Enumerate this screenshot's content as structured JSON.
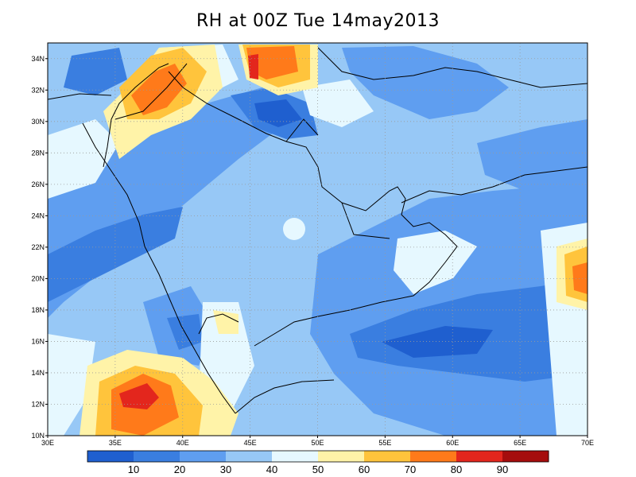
{
  "title": "RH at 00Z Tue 14may2013",
  "map": {
    "lon_range": [
      30,
      70
    ],
    "lat_range": [
      10,
      35
    ],
    "lon_ticks": [
      "30E",
      "35E",
      "40E",
      "45E",
      "50E",
      "55E",
      "60E",
      "65E",
      "70E"
    ],
    "lat_ticks": [
      "10N",
      "12N",
      "14N",
      "16N",
      "18N",
      "20N",
      "22N",
      "24N",
      "26N",
      "28N",
      "30N",
      "32N",
      "34N"
    ],
    "grid": "dotted",
    "field": "relative humidity"
  },
  "colorbar": {
    "labels": [
      "10",
      "20",
      "30",
      "40",
      "50",
      "60",
      "70",
      "80",
      "90"
    ],
    "colors": [
      "#1f5fcf",
      "#3a7ee0",
      "#5f9ef0",
      "#97c8f6",
      "#e6f8ff",
      "#fff3a8",
      "#ffc43c",
      "#ff7a1a",
      "#e3261d",
      "#a50d0d"
    ]
  },
  "colors": {
    "coast": "#000000",
    "grid": "#9a9a9a"
  }
}
